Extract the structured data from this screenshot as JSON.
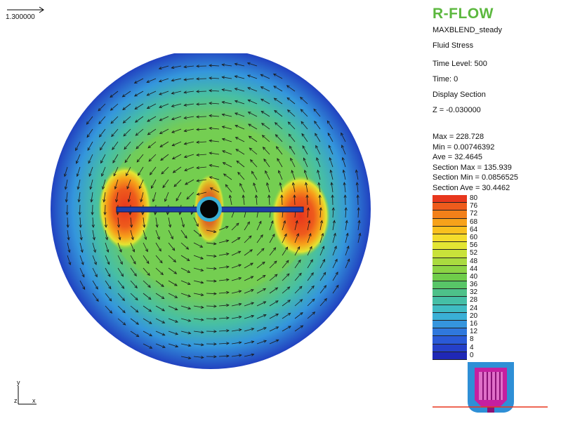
{
  "scale_reference": {
    "value": "1.300000"
  },
  "panel": {
    "app_name": "R-FLOW",
    "case_name": "MAXBLEND_steady",
    "variable": "Fluid Stress",
    "time_level": "Time Level: 500",
    "time": "Time: 0",
    "display_section": "Display Section",
    "z_value": "Z = -0.030000",
    "stats": [
      "Max = 228.728",
      "Min = 0.00746392",
      "Ave = 32.4645",
      "Section Max = 135.939",
      "Section Min = 0.0856525",
      "Section Ave = 30.4462"
    ]
  },
  "legend": {
    "levels": [
      {
        "label": "80",
        "color": "#e8371d"
      },
      {
        "label": "76",
        "color": "#ee5b1c"
      },
      {
        "label": "72",
        "color": "#f28019"
      },
      {
        "label": "68",
        "color": "#f7a21a"
      },
      {
        "label": "64",
        "color": "#f9c01e"
      },
      {
        "label": "60",
        "color": "#f4dc2b"
      },
      {
        "label": "56",
        "color": "#e3e533"
      },
      {
        "label": "52",
        "color": "#c9e23a"
      },
      {
        "label": "48",
        "color": "#aadb3f"
      },
      {
        "label": "44",
        "color": "#8cd444"
      },
      {
        "label": "40",
        "color": "#6fcd4a"
      },
      {
        "label": "36",
        "color": "#58c667"
      },
      {
        "label": "32",
        "color": "#4dc189"
      },
      {
        "label": "28",
        "color": "#45bfa6"
      },
      {
        "label": "24",
        "color": "#3fbcc3"
      },
      {
        "label": "20",
        "color": "#3ab0d6"
      },
      {
        "label": "16",
        "color": "#3595dd"
      },
      {
        "label": "12",
        "color": "#2f78dd"
      },
      {
        "label": "8",
        "color": "#2a5ad7"
      },
      {
        "label": "4",
        "color": "#2540c9"
      },
      {
        "label": "0",
        "color": "#1f28b6"
      }
    ]
  },
  "axes": {
    "y": "y",
    "z": "z",
    "x": "x"
  }
}
